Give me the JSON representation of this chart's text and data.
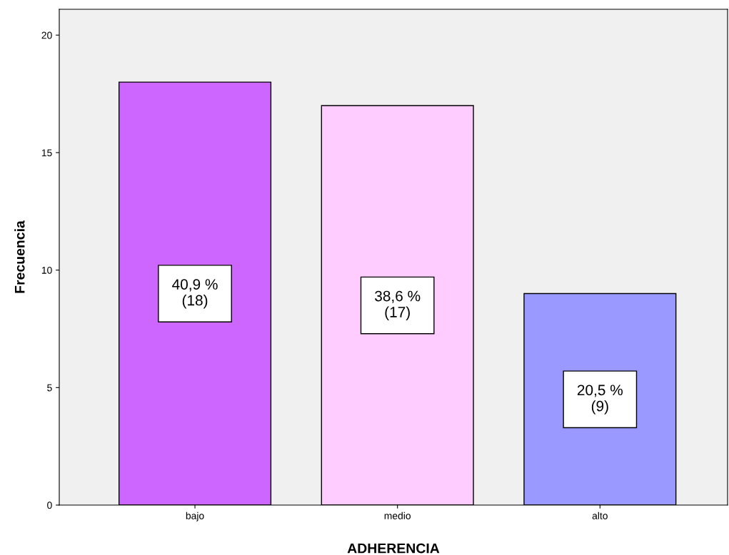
{
  "chart_data": {
    "type": "bar",
    "xlabel": "ADHERENCIA",
    "ylabel": "Frecuencia",
    "categories": [
      "bajo",
      "medio",
      "alto"
    ],
    "values": [
      18,
      17,
      9
    ],
    "colors": [
      "#cc66ff",
      "#ffccff",
      "#9999ff"
    ],
    "value_labels": [
      "40,9 %\n(18)",
      "38,6 %\n(17)",
      "20,5 %\n(9)"
    ],
    "ylim": [
      0,
      21.1
    ],
    "yticks": [
      0,
      5,
      10,
      15,
      20
    ],
    "grid": false,
    "legend": false
  }
}
